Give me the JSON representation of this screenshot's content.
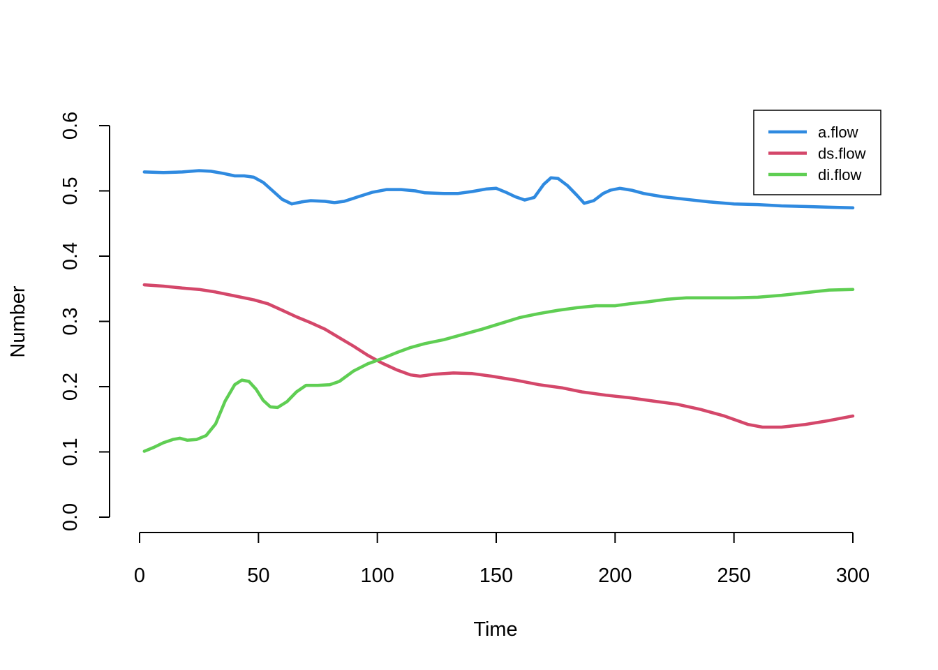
{
  "chart_data": {
    "type": "line",
    "xlabel": "Time",
    "ylabel": "Number",
    "xlim": [
      0,
      300
    ],
    "ylim": [
      0,
      0.6
    ],
    "x_ticks": [
      0,
      50,
      100,
      150,
      200,
      250,
      300
    ],
    "y_ticks": [
      "0.0",
      "0.1",
      "0.2",
      "0.3",
      "0.4",
      "0.5",
      "0.6"
    ],
    "grid": false,
    "legend_position": "top-right",
    "series": [
      {
        "name": "a.flow",
        "color": "#2F8AE0",
        "points": [
          [
            2,
            0.529
          ],
          [
            10,
            0.528
          ],
          [
            18,
            0.529
          ],
          [
            25,
            0.531
          ],
          [
            30,
            0.53
          ],
          [
            35,
            0.527
          ],
          [
            40,
            0.523
          ],
          [
            44,
            0.523
          ],
          [
            48,
            0.521
          ],
          [
            52,
            0.513
          ],
          [
            56,
            0.5
          ],
          [
            60,
            0.487
          ],
          [
            64,
            0.48
          ],
          [
            68,
            0.483
          ],
          [
            72,
            0.485
          ],
          [
            78,
            0.484
          ],
          [
            82,
            0.482
          ],
          [
            86,
            0.484
          ],
          [
            92,
            0.491
          ],
          [
            98,
            0.498
          ],
          [
            104,
            0.502
          ],
          [
            110,
            0.502
          ],
          [
            116,
            0.5
          ],
          [
            120,
            0.497
          ],
          [
            128,
            0.496
          ],
          [
            134,
            0.496
          ],
          [
            140,
            0.499
          ],
          [
            146,
            0.503
          ],
          [
            150,
            0.504
          ],
          [
            154,
            0.498
          ],
          [
            158,
            0.491
          ],
          [
            162,
            0.486
          ],
          [
            166,
            0.49
          ],
          [
            170,
            0.51
          ],
          [
            173,
            0.52
          ],
          [
            176,
            0.519
          ],
          [
            180,
            0.508
          ],
          [
            184,
            0.493
          ],
          [
            187,
            0.481
          ],
          [
            191,
            0.485
          ],
          [
            195,
            0.496
          ],
          [
            198,
            0.501
          ],
          [
            202,
            0.504
          ],
          [
            207,
            0.501
          ],
          [
            212,
            0.496
          ],
          [
            220,
            0.491
          ],
          [
            230,
            0.487
          ],
          [
            240,
            0.483
          ],
          [
            250,
            0.48
          ],
          [
            260,
            0.479
          ],
          [
            270,
            0.477
          ],
          [
            280,
            0.476
          ],
          [
            290,
            0.475
          ],
          [
            300,
            0.474
          ]
        ]
      },
      {
        "name": "ds.flow",
        "color": "#D4476A",
        "points": [
          [
            2,
            0.356
          ],
          [
            10,
            0.354
          ],
          [
            18,
            0.351
          ],
          [
            25,
            0.349
          ],
          [
            32,
            0.345
          ],
          [
            40,
            0.339
          ],
          [
            48,
            0.333
          ],
          [
            54,
            0.327
          ],
          [
            60,
            0.317
          ],
          [
            66,
            0.307
          ],
          [
            72,
            0.298
          ],
          [
            78,
            0.288
          ],
          [
            84,
            0.275
          ],
          [
            90,
            0.262
          ],
          [
            96,
            0.248
          ],
          [
            102,
            0.236
          ],
          [
            108,
            0.226
          ],
          [
            114,
            0.218
          ],
          [
            118,
            0.216
          ],
          [
            124,
            0.219
          ],
          [
            132,
            0.221
          ],
          [
            140,
            0.22
          ],
          [
            148,
            0.216
          ],
          [
            158,
            0.21
          ],
          [
            168,
            0.203
          ],
          [
            178,
            0.198
          ],
          [
            186,
            0.192
          ],
          [
            196,
            0.187
          ],
          [
            206,
            0.183
          ],
          [
            216,
            0.178
          ],
          [
            226,
            0.173
          ],
          [
            236,
            0.165
          ],
          [
            246,
            0.155
          ],
          [
            256,
            0.142
          ],
          [
            262,
            0.138
          ],
          [
            270,
            0.138
          ],
          [
            280,
            0.142
          ],
          [
            290,
            0.148
          ],
          [
            300,
            0.155
          ]
        ]
      },
      {
        "name": "di.flow",
        "color": "#5FCE53",
        "points": [
          [
            2,
            0.101
          ],
          [
            6,
            0.107
          ],
          [
            10,
            0.114
          ],
          [
            14,
            0.119
          ],
          [
            17,
            0.121
          ],
          [
            20,
            0.118
          ],
          [
            24,
            0.119
          ],
          [
            28,
            0.125
          ],
          [
            32,
            0.143
          ],
          [
            36,
            0.178
          ],
          [
            40,
            0.203
          ],
          [
            43,
            0.21
          ],
          [
            46,
            0.208
          ],
          [
            49,
            0.196
          ],
          [
            52,
            0.179
          ],
          [
            55,
            0.169
          ],
          [
            58,
            0.168
          ],
          [
            62,
            0.177
          ],
          [
            66,
            0.192
          ],
          [
            70,
            0.202
          ],
          [
            75,
            0.202
          ],
          [
            80,
            0.203
          ],
          [
            84,
            0.208
          ],
          [
            90,
            0.224
          ],
          [
            96,
            0.235
          ],
          [
            102,
            0.243
          ],
          [
            108,
            0.252
          ],
          [
            114,
            0.26
          ],
          [
            120,
            0.266
          ],
          [
            128,
            0.272
          ],
          [
            136,
            0.28
          ],
          [
            144,
            0.288
          ],
          [
            152,
            0.297
          ],
          [
            160,
            0.306
          ],
          [
            168,
            0.312
          ],
          [
            176,
            0.317
          ],
          [
            184,
            0.321
          ],
          [
            192,
            0.324
          ],
          [
            200,
            0.324
          ],
          [
            206,
            0.327
          ],
          [
            214,
            0.33
          ],
          [
            222,
            0.334
          ],
          [
            230,
            0.336
          ],
          [
            240,
            0.336
          ],
          [
            250,
            0.336
          ],
          [
            260,
            0.337
          ],
          [
            270,
            0.34
          ],
          [
            280,
            0.344
          ],
          [
            290,
            0.348
          ],
          [
            300,
            0.349
          ]
        ]
      }
    ]
  }
}
